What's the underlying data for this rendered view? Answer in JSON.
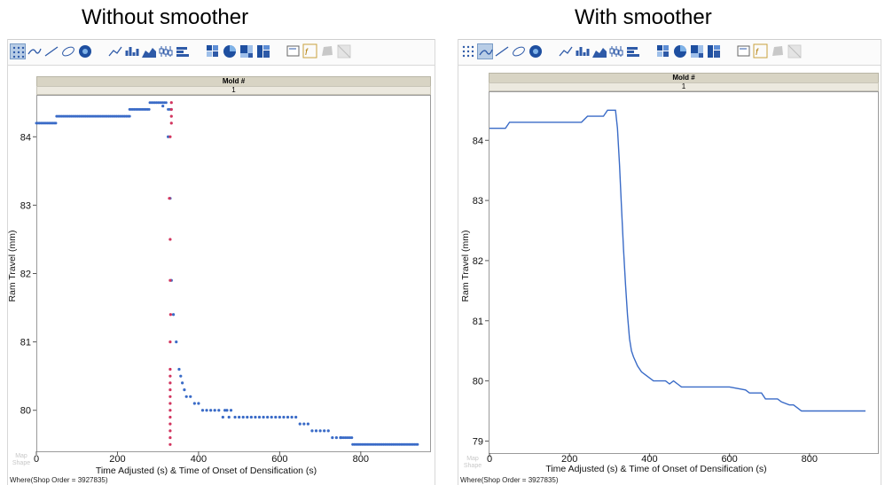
{
  "titles": {
    "left": "Without smoother",
    "right": "With smoother"
  },
  "header": {
    "group_label": "Mold #",
    "group_value": "1"
  },
  "footer": {
    "where": "Where(Shop Order = 3927835)",
    "map_shape_line1": "Map",
    "map_shape_line2": "Shape"
  },
  "toolbar_icons": [
    "points-icon",
    "smoother-icon",
    "line-of-fit-icon",
    "ellipse-icon",
    "contour-icon",
    "line-icon",
    "bar-icon",
    "area-icon",
    "box-plot-icon",
    "histogram-icon",
    "heatmap-icon",
    "pie-icon",
    "treemap-icon",
    "mosaic-icon",
    "caption-icon",
    "formula-icon",
    "map-shape-icon",
    "blank-icon"
  ],
  "chart_data": [
    {
      "type": "scatter",
      "title": "Without smoother",
      "xlabel": "Time Adjusted (s) & Time of Onset of Densification (s)",
      "ylabel": "Ram Travel (mm)",
      "xlim": [
        0,
        960
      ],
      "ylim": [
        79.4,
        84.6
      ],
      "x_ticks": [
        0,
        200,
        400,
        600,
        800
      ],
      "y_ticks": [
        80,
        81,
        82,
        83,
        84
      ],
      "grid": false,
      "series": [
        {
          "color": "#3a6bc7",
          "steps": [
            [
              0,
              50,
              84.2
            ],
            [
              50,
              230,
              84.3
            ],
            [
              230,
              280,
              84.4
            ],
            [
              280,
              320,
              84.5
            ],
            [
              325,
              335,
              84.4
            ],
            [
              750,
              780,
              79.6
            ],
            [
              780,
              940,
              79.5
            ]
          ],
          "points": [
            [
              312,
              84.45
            ],
            [
              325,
              84.0
            ],
            [
              330,
              83.1
            ],
            [
              333,
              81.9
            ],
            [
              338,
              81.4
            ],
            [
              345,
              81.0
            ],
            [
              352,
              80.6
            ],
            [
              356,
              80.5
            ],
            [
              360,
              80.4
            ],
            [
              365,
              80.3
            ],
            [
              370,
              80.2
            ],
            [
              380,
              80.2
            ],
            [
              390,
              80.1
            ],
            [
              400,
              80.1
            ],
            [
              410,
              80.0
            ],
            [
              420,
              80.0
            ],
            [
              430,
              80.0
            ],
            [
              440,
              80.0
            ],
            [
              450,
              80.0
            ],
            [
              460,
              79.9
            ],
            [
              465,
              80.0
            ],
            [
              470,
              80.0
            ],
            [
              475,
              79.9
            ],
            [
              480,
              80.0
            ],
            [
              490,
              79.9
            ],
            [
              500,
              79.9
            ],
            [
              510,
              79.9
            ],
            [
              520,
              79.9
            ],
            [
              530,
              79.9
            ],
            [
              540,
              79.9
            ],
            [
              550,
              79.9
            ],
            [
              560,
              79.9
            ],
            [
              570,
              79.9
            ],
            [
              580,
              79.9
            ],
            [
              590,
              79.9
            ],
            [
              600,
              79.9
            ],
            [
              610,
              79.9
            ],
            [
              620,
              79.9
            ],
            [
              630,
              79.9
            ],
            [
              640,
              79.9
            ],
            [
              650,
              79.8
            ],
            [
              660,
              79.8
            ],
            [
              670,
              79.8
            ],
            [
              680,
              79.7
            ],
            [
              690,
              79.7
            ],
            [
              700,
              79.7
            ],
            [
              710,
              79.7
            ],
            [
              720,
              79.7
            ],
            [
              730,
              79.6
            ],
            [
              740,
              79.6
            ],
            [
              750,
              79.6
            ]
          ]
        },
        {
          "color": "#d2355f",
          "points": [
            [
              333,
              84.5
            ],
            [
              333,
              84.4
            ],
            [
              333,
              84.3
            ],
            [
              333,
              84.2
            ],
            [
              330,
              84.0
            ],
            [
              328,
              83.1
            ],
            [
              330,
              82.5
            ],
            [
              330,
              81.9
            ],
            [
              331,
              81.4
            ],
            [
              330,
              81.0
            ],
            [
              330,
              80.6
            ],
            [
              330,
              80.5
            ],
            [
              330,
              80.4
            ],
            [
              330,
              80.3
            ],
            [
              330,
              80.2
            ],
            [
              330,
              80.1
            ],
            [
              330,
              80.0
            ],
            [
              330,
              79.9
            ],
            [
              330,
              79.8
            ],
            [
              330,
              79.7
            ],
            [
              330,
              79.6
            ],
            [
              330,
              79.5
            ]
          ]
        }
      ]
    },
    {
      "type": "line",
      "title": "With smoother",
      "xlabel": "Time Adjusted (s) & Time of Onset of Densification (s)",
      "ylabel": "Ram Travel (mm)",
      "xlim": [
        0,
        960
      ],
      "ylim": [
        78.8,
        84.8
      ],
      "x_ticks": [
        0,
        200,
        400,
        600,
        800
      ],
      "y_ticks": [
        79,
        80,
        81,
        82,
        83,
        84
      ],
      "grid": false,
      "series": [
        {
          "color": "#3a6bc7",
          "x": [
            0,
            40,
            50,
            60,
            230,
            245,
            285,
            295,
            310,
            315,
            320,
            325,
            330,
            335,
            340,
            345,
            350,
            355,
            360,
            370,
            380,
            390,
            400,
            410,
            440,
            450,
            460,
            470,
            480,
            490,
            500,
            600,
            640,
            650,
            680,
            690,
            720,
            730,
            750,
            760,
            770,
            780,
            940
          ],
          "y": [
            84.2,
            84.2,
            84.3,
            84.3,
            84.3,
            84.4,
            84.4,
            84.5,
            84.5,
            84.5,
            84.2,
            83.6,
            82.9,
            82.2,
            81.6,
            81.1,
            80.7,
            80.5,
            80.4,
            80.25,
            80.15,
            80.1,
            80.05,
            80.0,
            80.0,
            79.95,
            80.0,
            79.95,
            79.9,
            79.9,
            79.9,
            79.9,
            79.85,
            79.8,
            79.8,
            79.7,
            79.7,
            79.65,
            79.6,
            79.6,
            79.55,
            79.5,
            79.5
          ]
        }
      ]
    }
  ]
}
